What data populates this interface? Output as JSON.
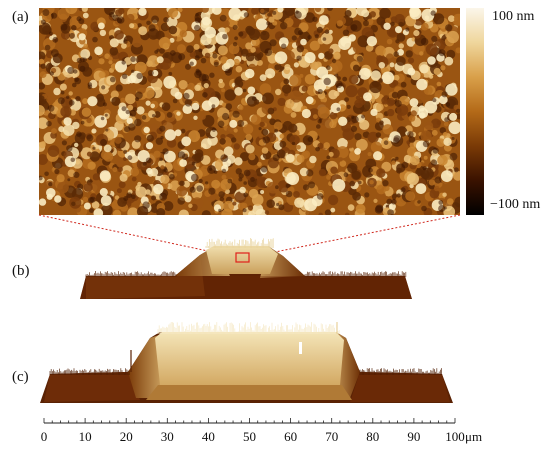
{
  "panels": {
    "a": "(a)",
    "b": "(b)",
    "c": "(c)"
  },
  "colorbar": {
    "max_label": "100 nm",
    "min_label": "−100 nm",
    "colors": [
      "#000000",
      "#3a1200",
      "#7a3a06",
      "#b46a18",
      "#d9a04a",
      "#efd69c",
      "#fbf6ea"
    ]
  },
  "axis": {
    "ticks": [
      "0",
      "10",
      "20",
      "30",
      "40",
      "50",
      "60",
      "70",
      "80",
      "90",
      "100"
    ],
    "tick_values": [
      0,
      10,
      20,
      30,
      40,
      50,
      60,
      70,
      80,
      90,
      100
    ],
    "unit": "μm",
    "range": [
      0,
      100
    ]
  },
  "colors": {
    "zoom_marker": "#e0201a",
    "dark_brown": "#6a2a04",
    "light_tan": "#e8cf92"
  }
}
